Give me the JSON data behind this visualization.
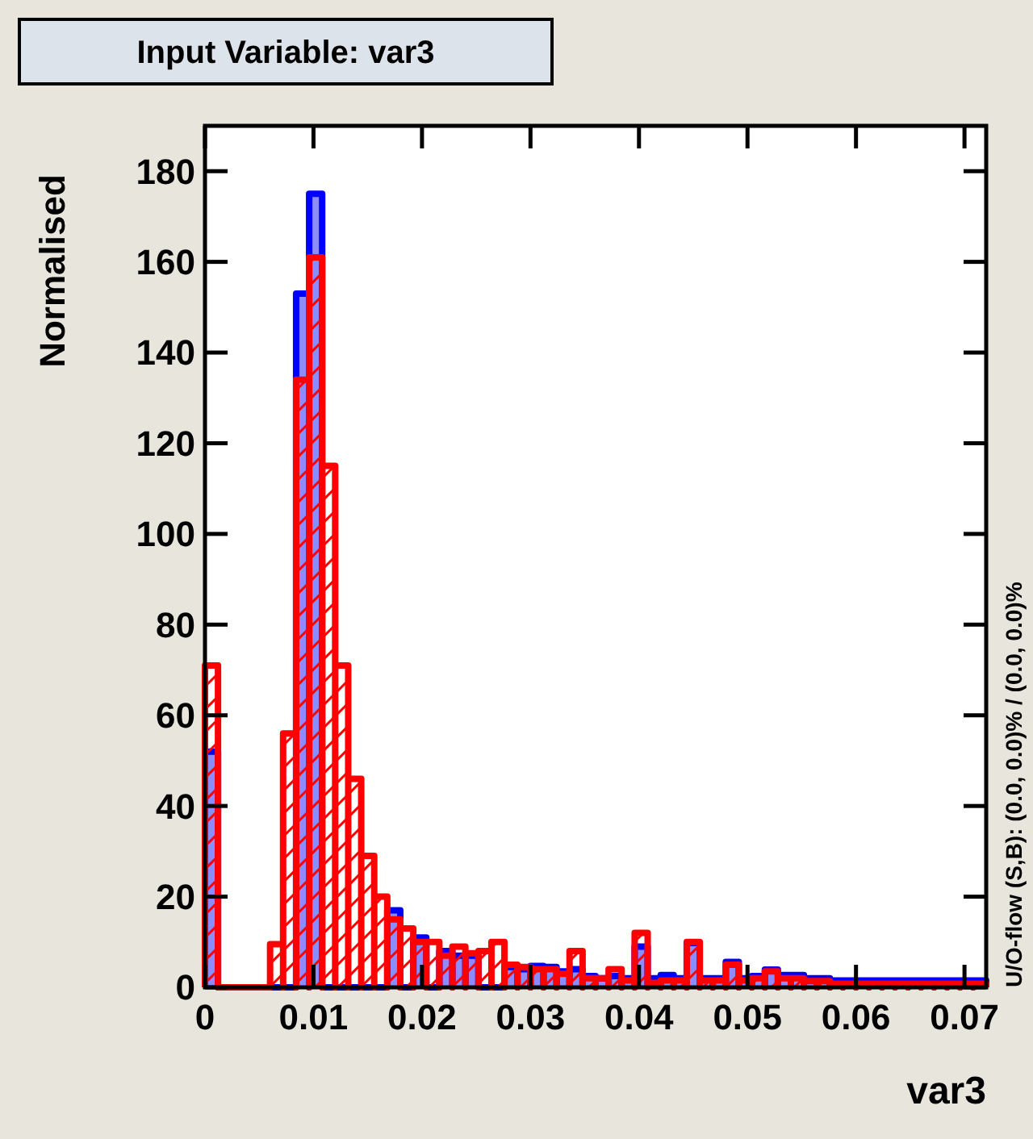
{
  "chart_data": {
    "type": "histogram",
    "title": "Input Variable: var3",
    "xlabel": "var3",
    "ylabel": "Normalised",
    "annotations": [
      "U/O-flow (S,B): (0.0, 0.0)% / (0.0, 0.0)%"
    ],
    "bins": [
      0,
      0.0012,
      0.0024,
      0.0036,
      0.0048,
      0.006,
      0.0072,
      0.0084,
      0.0096,
      0.0108,
      0.012,
      0.0132,
      0.0144,
      0.0156,
      0.0168,
      0.018,
      0.0192,
      0.0204,
      0.0216,
      0.0228,
      0.024,
      0.0252,
      0.0264,
      0.0276,
      0.0288,
      0.03,
      0.0312,
      0.0324,
      0.0336,
      0.0348,
      0.036,
      0.0372,
      0.0384,
      0.0396,
      0.0408,
      0.042,
      0.0432,
      0.0444,
      0.0456,
      0.0468,
      0.048,
      0.0492,
      0.0504,
      0.0516,
      0.0528,
      0.054,
      0.0552,
      0.0564,
      0.0576,
      0.0588,
      0.06,
      0.0612,
      0.0624,
      0.0636,
      0.0648,
      0.066,
      0.0672,
      0.0684,
      0.0696,
      0.0708,
      0.072
    ],
    "series": [
      {
        "color": "#0000ff",
        "values": [
          52,
          0,
          0,
          0,
          0,
          null,
          null,
          153,
          175,
          null,
          null,
          null,
          null,
          null,
          17,
          null,
          11,
          null,
          8,
          7,
          7,
          null,
          null,
          4.5,
          4,
          4.7,
          4.5,
          3.5,
          4,
          2.5,
          2,
          2.5,
          2,
          9,
          2,
          2.7,
          2,
          9.8,
          2,
          2,
          5.6,
          2,
          2.5,
          3.9,
          2.7,
          2.7,
          2,
          2,
          1.5,
          1.5,
          1.5,
          1.5,
          1.5,
          1.5,
          1.5,
          1.5,
          1.5,
          1.5,
          1.5,
          1.5
        ]
      },
      {
        "color": "#ff0000",
        "values": [
          71,
          0,
          0,
          0,
          0,
          9.5,
          56,
          134,
          161,
          115,
          71,
          46,
          29,
          20,
          15,
          13,
          10,
          10,
          7,
          9,
          7.5,
          8,
          10,
          5,
          4.5,
          4,
          4,
          3,
          8,
          2,
          2,
          4,
          1.5,
          12,
          1,
          1.5,
          1.5,
          10,
          1.5,
          1.5,
          5,
          1.5,
          2,
          3.5,
          2,
          2,
          1.4,
          1.4,
          0.8,
          0.8,
          0.8,
          0.8,
          0.8,
          0.8,
          0.8,
          0.8,
          0.8,
          0.8,
          0.8,
          0.8
        ]
      }
    ],
    "xlim": [
      0,
      0.072
    ],
    "xticks": [
      0,
      0.01,
      0.02,
      0.03,
      0.04,
      0.05,
      0.06,
      0.07
    ],
    "ylim": [
      0,
      190
    ],
    "yticks": [
      0,
      20,
      40,
      60,
      80,
      100,
      120,
      140,
      160,
      180
    ],
    "grid": false
  }
}
